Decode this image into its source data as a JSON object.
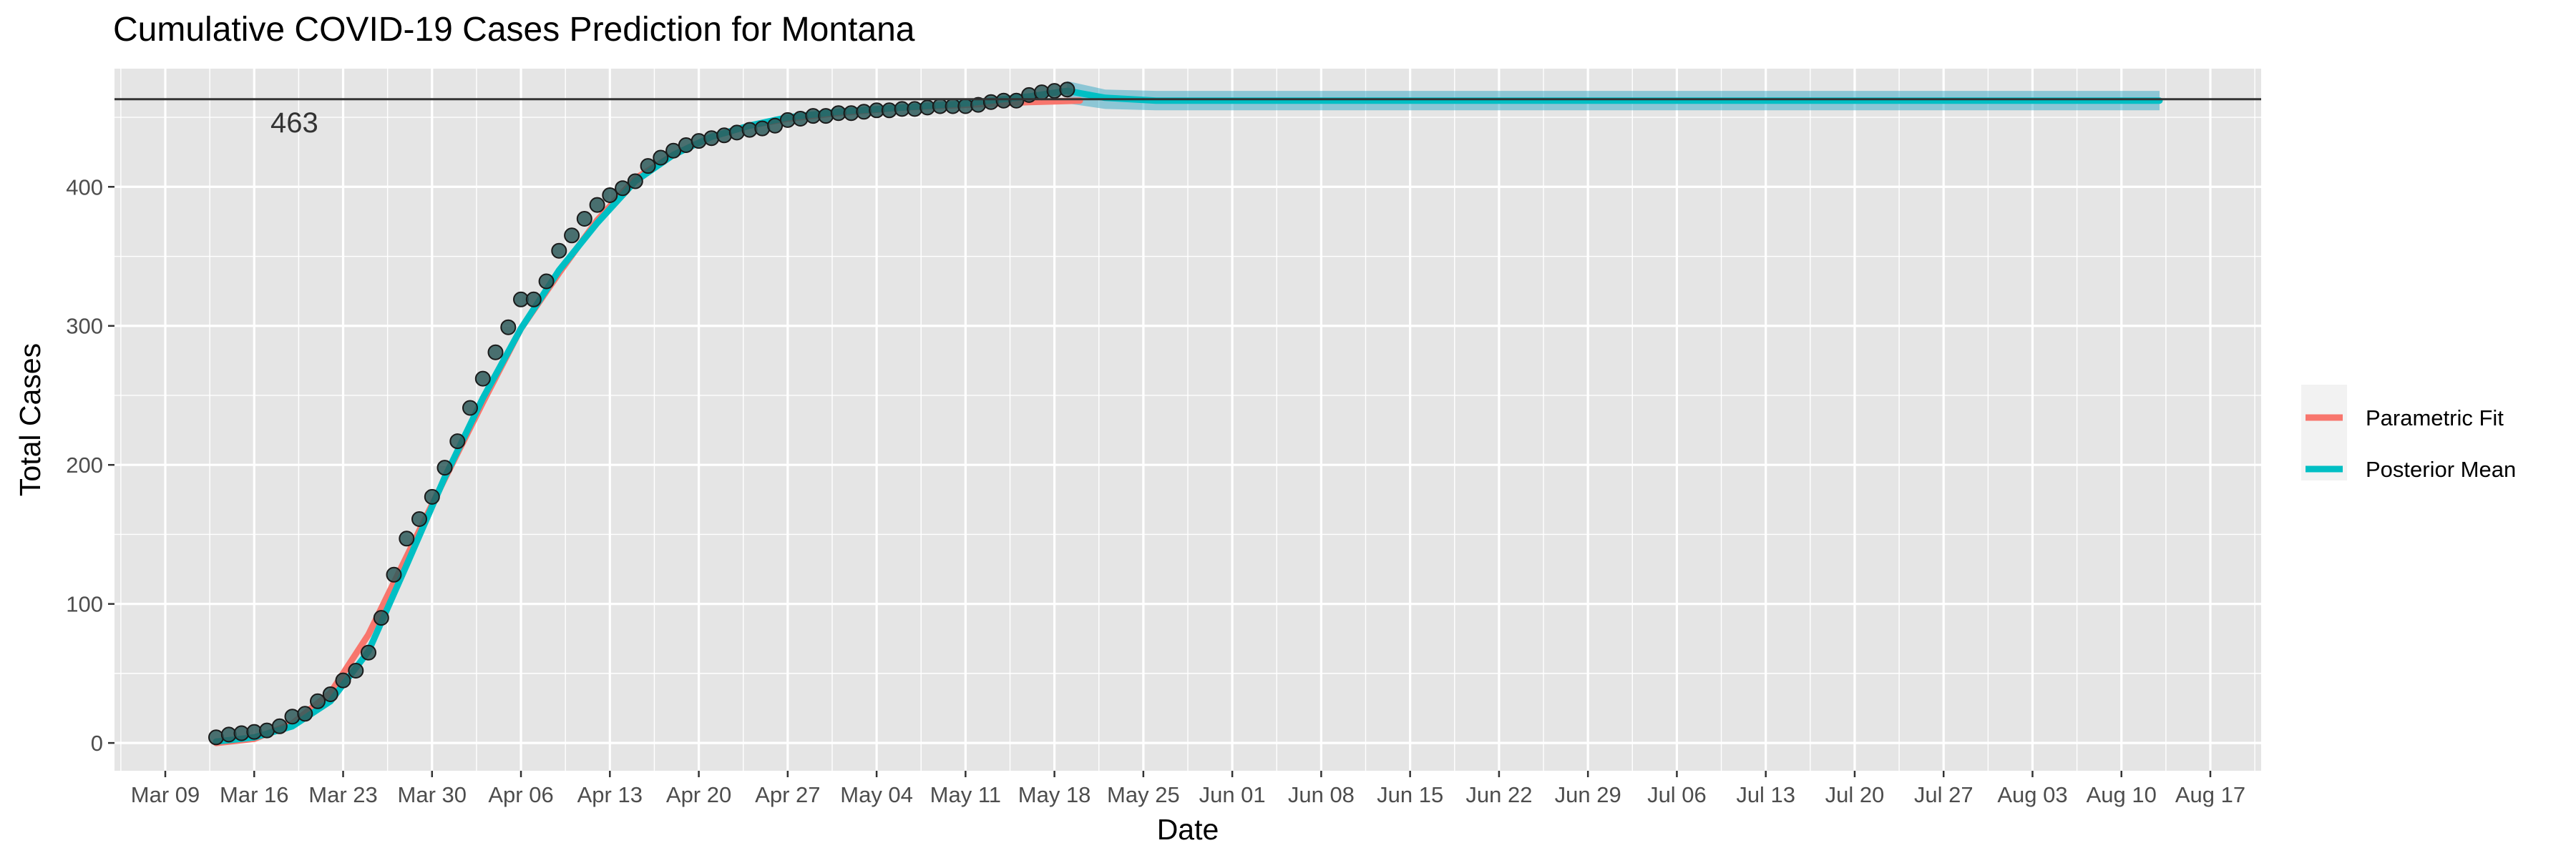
{
  "chart_data": {
    "type": "line",
    "title": "Cumulative COVID-19 Cases Prediction for Montana",
    "xlabel": "Date",
    "ylabel": "Total Cases",
    "x_ticks": [
      "Mar 09",
      "Mar 16",
      "Mar 23",
      "Mar 30",
      "Apr 06",
      "Apr 13",
      "Apr 20",
      "Apr 27",
      "May 04",
      "May 11",
      "May 18",
      "May 25",
      "Jun 01",
      "Jun 08",
      "Jun 15",
      "Jun 22",
      "Jun 29",
      "Jul 06",
      "Jul 13",
      "Jul 20",
      "Jul 27",
      "Aug 03",
      "Aug 10",
      "Aug 17"
    ],
    "xlim": [
      "2020-03-05",
      "2020-08-21"
    ],
    "y_ticks": [
      0,
      100,
      200,
      300,
      400
    ],
    "ylim": [
      -20,
      485
    ],
    "grid": true,
    "legend_position": "right",
    "reference_line": {
      "value": 463,
      "label": "463"
    },
    "colors": {
      "panel_background": "#e5e5e5",
      "grid": "#ffffff",
      "parametric_fit": "#f8766d",
      "posterior_mean": "#00bfc4",
      "band": "#1f9fc0",
      "points": "#2e5a5b",
      "reference_line": "#333333"
    },
    "observed": {
      "start_date": "2020-03-13",
      "values": [
        4,
        6,
        7,
        8,
        9,
        12,
        19,
        21,
        30,
        35,
        45,
        52,
        65,
        90,
        121,
        147,
        161,
        177,
        198,
        217,
        241,
        262,
        281,
        299,
        319,
        319,
        332,
        354,
        365,
        377,
        387,
        394,
        399,
        404,
        415,
        421,
        426,
        430,
        433,
        435,
        437,
        439,
        441,
        442,
        444,
        448,
        449,
        451,
        451,
        453,
        453,
        454,
        455,
        455,
        456,
        456,
        457,
        458,
        458,
        458,
        459,
        461,
        462,
        462,
        466,
        468,
        469,
        470
      ]
    },
    "series": [
      {
        "name": "Parametric Fit",
        "points": [
          [
            "2020-03-13",
            0
          ],
          [
            "2020-03-16",
            3
          ],
          [
            "2020-03-19",
            14
          ],
          [
            "2020-03-22",
            36
          ],
          [
            "2020-03-25",
            78
          ],
          [
            "2020-03-28",
            134
          ],
          [
            "2020-03-31",
            190
          ],
          [
            "2020-04-03",
            245
          ],
          [
            "2020-04-06",
            298
          ],
          [
            "2020-04-09",
            338
          ],
          [
            "2020-04-12",
            376
          ],
          [
            "2020-04-15",
            406
          ],
          [
            "2020-04-18",
            423
          ],
          [
            "2020-04-21",
            436
          ],
          [
            "2020-04-24",
            444
          ],
          [
            "2020-04-27",
            449
          ],
          [
            "2020-05-01",
            453
          ],
          [
            "2020-05-06",
            457
          ],
          [
            "2020-05-11",
            459
          ],
          [
            "2020-05-16",
            461
          ],
          [
            "2020-05-20",
            462
          ]
        ]
      },
      {
        "name": "Posterior Mean",
        "points": [
          [
            "2020-03-13",
            1
          ],
          [
            "2020-03-16",
            4
          ],
          [
            "2020-03-19",
            12
          ],
          [
            "2020-03-22",
            30
          ],
          [
            "2020-03-25",
            66
          ],
          [
            "2020-03-28",
            128
          ],
          [
            "2020-03-31",
            191
          ],
          [
            "2020-04-03",
            248
          ],
          [
            "2020-04-06",
            298
          ],
          [
            "2020-04-09",
            340
          ],
          [
            "2020-04-12",
            374
          ],
          [
            "2020-04-15",
            404
          ],
          [
            "2020-04-18",
            423
          ],
          [
            "2020-04-21",
            436
          ],
          [
            "2020-04-24",
            444
          ],
          [
            "2020-04-27",
            450
          ],
          [
            "2020-05-01",
            454
          ],
          [
            "2020-05-06",
            457
          ],
          [
            "2020-05-11",
            460
          ],
          [
            "2020-05-16",
            465
          ],
          [
            "2020-05-19",
            469
          ],
          [
            "2020-05-22",
            464
          ],
          [
            "2020-05-26",
            462
          ],
          [
            "2020-08-13",
            462
          ]
        ]
      }
    ],
    "credible_band": {
      "points": [
        [
          "2020-05-19",
          460,
          476
        ],
        [
          "2020-05-22",
          456,
          470
        ],
        [
          "2020-05-26",
          455,
          469
        ],
        [
          "2020-06-15",
          455,
          469
        ],
        [
          "2020-07-15",
          455,
          469
        ],
        [
          "2020-08-13",
          455,
          469
        ]
      ]
    },
    "legend": [
      {
        "label": "Parametric Fit",
        "color": "#f8766d"
      },
      {
        "label": "Posterior Mean",
        "color": "#00bfc4"
      }
    ]
  }
}
